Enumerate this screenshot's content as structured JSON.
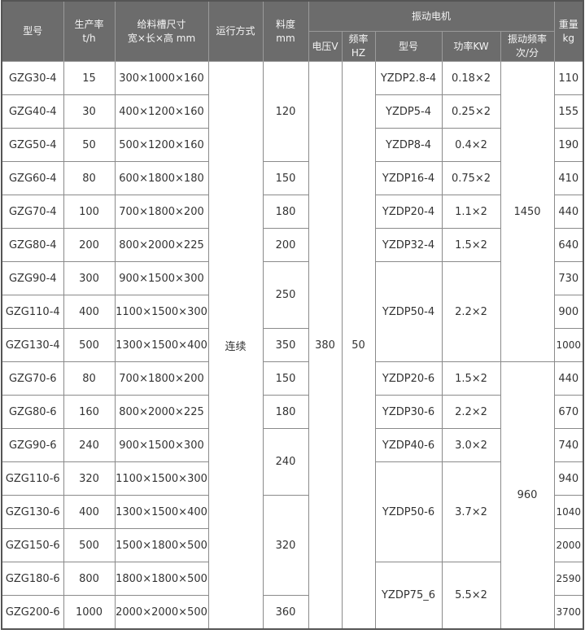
{
  "header": {
    "model": "型号",
    "capacity": [
      "生产率",
      "t/h"
    ],
    "trough": [
      "给料槽尺寸",
      "宽×长×高 mm"
    ],
    "mode": "运行方式",
    "size": [
      "料度",
      "mm"
    ],
    "motor": "振动电机",
    "voltage": "电压V",
    "freq": [
      "频率",
      "HZ"
    ],
    "motor_model": "型号",
    "power": "功率KW",
    "vib_freq": [
      "振动频率",
      "次/分"
    ],
    "weight": [
      "重量",
      "kg"
    ]
  },
  "colors": {
    "header_bg": "#6c6c6c",
    "header_text": "#f4f4f4",
    "border": "#8a8a8a"
  },
  "rows": [
    [
      {
        "t": "GZG30-4"
      },
      {
        "t": "15"
      },
      {
        "t": "300×1000×160"
      },
      {
        "t": "连续",
        "rowspan": 17
      },
      {
        "t": "120",
        "rowspan": 3
      },
      {
        "t": "380",
        "rowspan": 17
      },
      {
        "t": "50",
        "rowspan": 17
      },
      {
        "t": "YZDP2.8-4"
      },
      {
        "t": "0.18×2"
      },
      {
        "t": "1450",
        "rowspan": 9
      },
      {
        "t": "110"
      }
    ],
    [
      {
        "t": "GZG40-4"
      },
      {
        "t": "30"
      },
      {
        "t": "400×1200×160"
      },
      {
        "t": "YZDP5-4"
      },
      {
        "t": "0.25×2"
      },
      {
        "t": "155"
      }
    ],
    [
      {
        "t": "GZG50-4"
      },
      {
        "t": "50"
      },
      {
        "t": "500×1200×160"
      },
      {
        "t": "YZDP8-4"
      },
      {
        "t": "0.4×2"
      },
      {
        "t": "190"
      }
    ],
    [
      {
        "t": "GZG60-4"
      },
      {
        "t": "80"
      },
      {
        "t": "600×1800×180"
      },
      {
        "t": "150"
      },
      {
        "t": "YZDP16-4"
      },
      {
        "t": "0.75×2"
      },
      {
        "t": "410"
      }
    ],
    [
      {
        "t": "GZG70-4"
      },
      {
        "t": "100"
      },
      {
        "t": "700×1800×200"
      },
      {
        "t": "180"
      },
      {
        "t": "YZDP20-4"
      },
      {
        "t": "1.1×2"
      },
      {
        "t": "440"
      }
    ],
    [
      {
        "t": "GZG80-4"
      },
      {
        "t": "200"
      },
      {
        "t": "800×2000×225"
      },
      {
        "t": "200"
      },
      {
        "t": "YZDP32-4"
      },
      {
        "t": "1.5×2"
      },
      {
        "t": "640"
      }
    ],
    [
      {
        "t": "GZG90-4"
      },
      {
        "t": "300"
      },
      {
        "t": "900×1500×300"
      },
      {
        "t": "250",
        "rowspan": 2
      },
      {
        "t": "YZDP50-4",
        "rowspan": 3
      },
      {
        "t": "2.2×2",
        "rowspan": 3
      },
      {
        "t": "730"
      }
    ],
    [
      {
        "t": "GZG110-4"
      },
      {
        "t": "400"
      },
      {
        "t": "1100×1500×300"
      },
      {
        "t": "900"
      }
    ],
    [
      {
        "t": "GZG130-4"
      },
      {
        "t": "500"
      },
      {
        "t": "1300×1500×400"
      },
      {
        "t": "350"
      },
      {
        "t": "1000"
      }
    ],
    [
      {
        "t": "GZG70-6"
      },
      {
        "t": "80"
      },
      {
        "t": "700×1800×200"
      },
      {
        "t": "150"
      },
      {
        "t": "YZDP20-6"
      },
      {
        "t": "1.5×2"
      },
      {
        "t": "960",
        "rowspan": 8
      },
      {
        "t": "440"
      }
    ],
    [
      {
        "t": "GZG80-6"
      },
      {
        "t": "160"
      },
      {
        "t": "800×2000×225"
      },
      {
        "t": "180"
      },
      {
        "t": "YZDP30-6"
      },
      {
        "t": "2.2×2"
      },
      {
        "t": "670"
      }
    ],
    [
      {
        "t": "GZG90-6"
      },
      {
        "t": "240"
      },
      {
        "t": "900×1500×300"
      },
      {
        "t": "240",
        "rowspan": 2
      },
      {
        "t": "YZDP40-6"
      },
      {
        "t": "3.0×2"
      },
      {
        "t": "740"
      }
    ],
    [
      {
        "t": "GZG110-6"
      },
      {
        "t": "320"
      },
      {
        "t": "1100×1500×300"
      },
      {
        "t": "YZDP50-6",
        "rowspan": 3
      },
      {
        "t": "3.7×2",
        "rowspan": 3
      },
      {
        "t": "940"
      }
    ],
    [
      {
        "t": "GZG130-6"
      },
      {
        "t": "400"
      },
      {
        "t": "1300×1500×400"
      },
      {
        "t": "320",
        "rowspan": 3
      },
      {
        "t": "1040"
      }
    ],
    [
      {
        "t": "GZG150-6"
      },
      {
        "t": "500"
      },
      {
        "t": "1500×1800×500"
      },
      {
        "t": "2000"
      }
    ],
    [
      {
        "t": "GZG180-6"
      },
      {
        "t": "800"
      },
      {
        "t": "1800×1800×500"
      },
      {
        "t": "YZDP75_6",
        "rowspan": 2
      },
      {
        "t": "5.5×2",
        "rowspan": 2
      },
      {
        "t": "2590"
      }
    ],
    [
      {
        "t": "GZG200-6"
      },
      {
        "t": "1000"
      },
      {
        "t": "2000×2000×500"
      },
      {
        "t": "360"
      },
      {
        "t": "3700"
      }
    ]
  ]
}
